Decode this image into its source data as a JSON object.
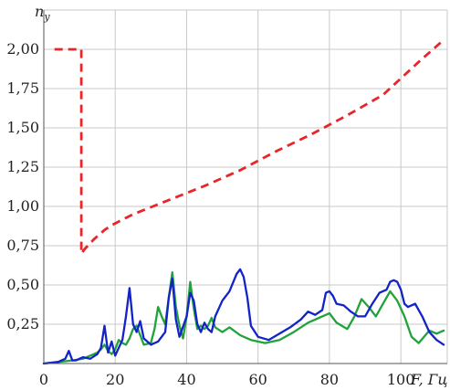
{
  "chart_data": {
    "type": "line",
    "title": "",
    "ylabel": "n",
    "ylabel_sub": "y",
    "xlabel": "F, Гц",
    "xlim": [
      0,
      113
    ],
    "ylim": [
      0,
      2.25
    ],
    "xticks": [
      0,
      20,
      40,
      60,
      80,
      100
    ],
    "xtick_labels": [
      "0",
      "20",
      "40",
      "60",
      "80",
      "100"
    ],
    "yticks": [
      0.25,
      0.5,
      0.75,
      1.0,
      1.25,
      1.5,
      1.75,
      2.0
    ],
    "ytick_labels": [
      "0,25",
      "0,50",
      "0,75",
      "1,00",
      "1,25",
      "1,50",
      "1,75",
      "2,00"
    ],
    "grid": true,
    "series": [
      {
        "color": "#e8262a",
        "style": "dashed",
        "x": [
          3,
          10.5,
          10.5,
          11.5,
          14,
          17,
          19,
          25,
          35,
          45,
          55,
          65,
          75,
          85,
          95,
          105,
          112
        ],
        "y": [
          2.0,
          2.0,
          0.7,
          0.73,
          0.79,
          0.85,
          0.88,
          0.95,
          1.04,
          1.13,
          1.23,
          1.35,
          1.46,
          1.58,
          1.71,
          1.92,
          2.06
        ]
      },
      {
        "color": "#1fa33a",
        "style": "solid",
        "x": [
          0,
          4,
          8,
          11,
          13,
          15,
          16,
          17,
          18,
          19,
          20,
          21,
          22,
          23,
          24,
          25,
          26,
          27,
          28,
          30,
          31,
          32,
          33,
          34,
          35,
          36,
          37,
          38,
          39,
          40,
          41,
          42,
          43,
          44,
          45,
          46,
          47,
          48,
          50,
          52,
          55,
          58,
          62,
          66,
          70,
          74,
          78,
          80,
          82,
          85,
          87,
          89,
          91,
          93,
          95,
          97,
          99,
          101,
          103,
          105,
          108,
          110,
          112
        ],
        "y": [
          0,
          0.01,
          0.02,
          0.03,
          0.05,
          0.07,
          0.09,
          0.12,
          0.08,
          0.06,
          0.09,
          0.15,
          0.13,
          0.12,
          0.16,
          0.22,
          0.24,
          0.18,
          0.12,
          0.13,
          0.22,
          0.36,
          0.3,
          0.25,
          0.42,
          0.58,
          0.36,
          0.24,
          0.16,
          0.3,
          0.52,
          0.35,
          0.22,
          0.24,
          0.22,
          0.24,
          0.29,
          0.23,
          0.2,
          0.23,
          0.18,
          0.15,
          0.13,
          0.15,
          0.2,
          0.26,
          0.3,
          0.32,
          0.26,
          0.22,
          0.3,
          0.41,
          0.36,
          0.3,
          0.38,
          0.46,
          0.4,
          0.3,
          0.17,
          0.13,
          0.21,
          0.19,
          0.21
        ]
      },
      {
        "color": "#1423c8",
        "style": "solid",
        "x": [
          0,
          4,
          6,
          7,
          8,
          9,
          11,
          13,
          15,
          16,
          17,
          18,
          19,
          20,
          21,
          22,
          23,
          24,
          25,
          26,
          27,
          28,
          30,
          32,
          34,
          35,
          36,
          37,
          38,
          40,
          41,
          42,
          43,
          44,
          45,
          46,
          47,
          48,
          50,
          52,
          54,
          55,
          56,
          57,
          58,
          60,
          63,
          66,
          69,
          72,
          74,
          76,
          78,
          79,
          80,
          81,
          82,
          84,
          86,
          88,
          90,
          92,
          94,
          96,
          97,
          98,
          99,
          100,
          101,
          102,
          104,
          106,
          108,
          110,
          112
        ],
        "y": [
          0,
          0.01,
          0.03,
          0.08,
          0.02,
          0.02,
          0.04,
          0.03,
          0.06,
          0.1,
          0.24,
          0.07,
          0.14,
          0.05,
          0.1,
          0.15,
          0.3,
          0.48,
          0.25,
          0.2,
          0.27,
          0.16,
          0.12,
          0.14,
          0.2,
          0.42,
          0.54,
          0.28,
          0.17,
          0.3,
          0.45,
          0.4,
          0.25,
          0.2,
          0.26,
          0.22,
          0.2,
          0.3,
          0.4,
          0.46,
          0.57,
          0.6,
          0.55,
          0.42,
          0.24,
          0.17,
          0.15,
          0.19,
          0.23,
          0.28,
          0.33,
          0.31,
          0.34,
          0.45,
          0.46,
          0.43,
          0.38,
          0.37,
          0.33,
          0.3,
          0.3,
          0.38,
          0.45,
          0.47,
          0.52,
          0.53,
          0.52,
          0.47,
          0.38,
          0.36,
          0.38,
          0.3,
          0.2,
          0.15,
          0.12
        ]
      }
    ]
  }
}
